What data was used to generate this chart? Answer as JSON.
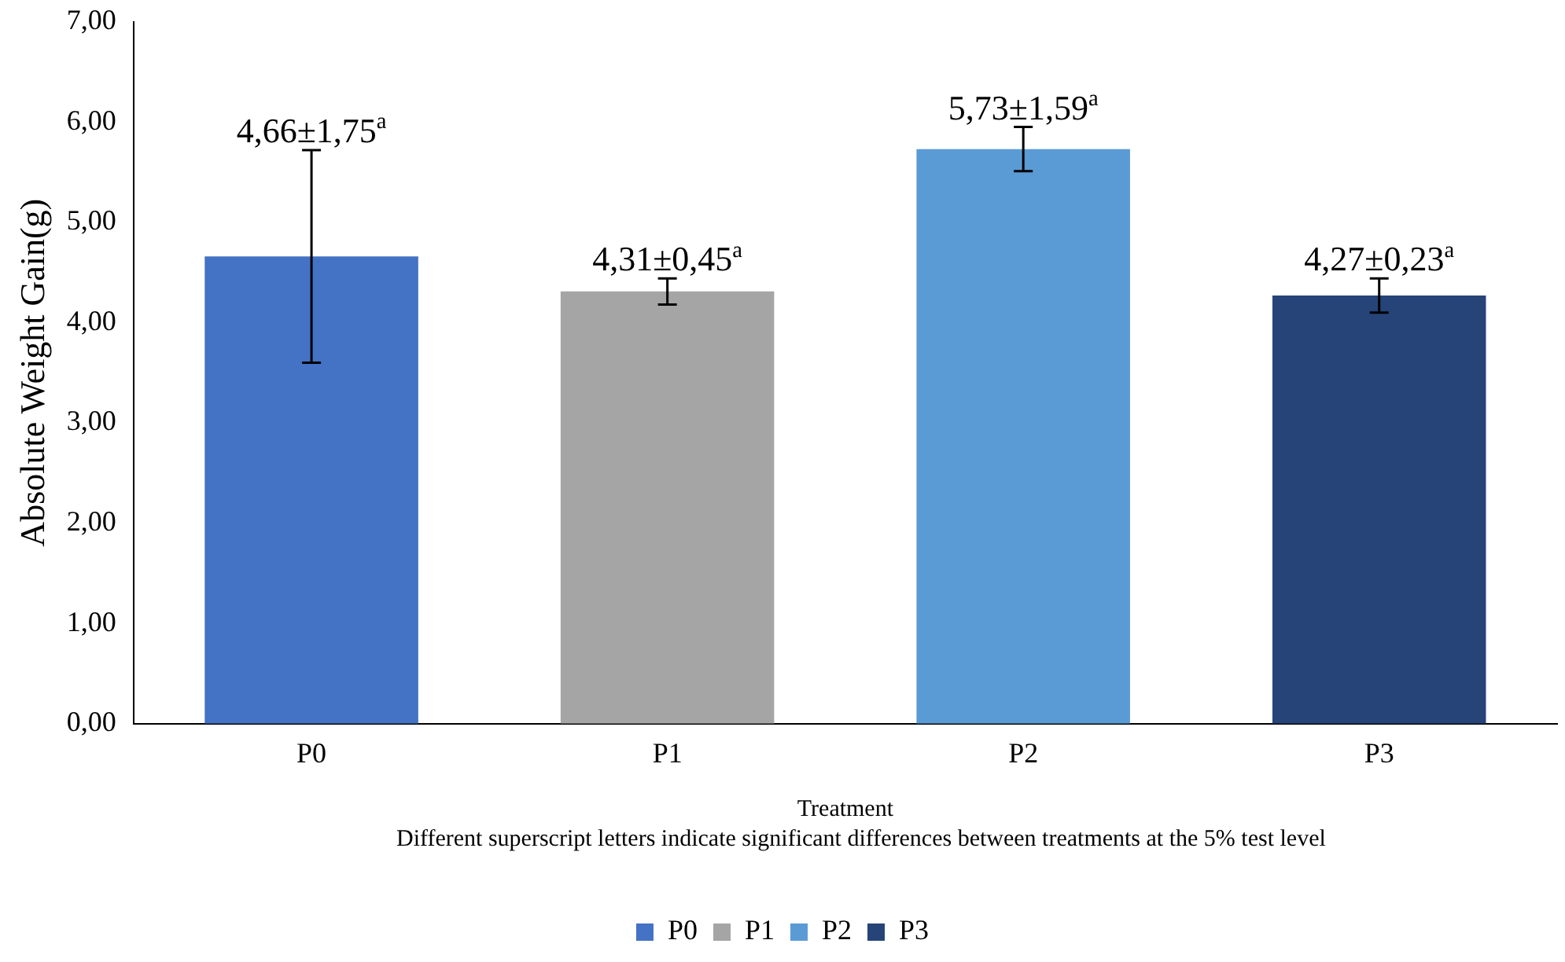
{
  "chart_data": {
    "type": "bar",
    "categories": [
      "P0",
      "P1",
      "P2",
      "P3"
    ],
    "series": [
      {
        "name": "P0",
        "color": "#4472c4",
        "values": [
          4.66,
          null,
          null,
          null
        ],
        "errors": [
          1.06,
          null,
          null,
          null
        ],
        "value_labels": [
          "4,66±1,75$^{a}$",
          null,
          null,
          null
        ]
      },
      {
        "name": "P1",
        "color": "#a5a5a5",
        "values": [
          null,
          4.31,
          null,
          null
        ],
        "errors": [
          null,
          0.13,
          null,
          null
        ],
        "value_labels": [
          null,
          "4,31±0,45$^{a}$",
          null,
          null
        ]
      },
      {
        "name": "P2",
        "color": "#5b9bd5",
        "values": [
          null,
          null,
          5.73,
          null
        ],
        "errors": [
          null,
          null,
          0.22,
          null
        ],
        "value_labels": [
          null,
          null,
          "5,73±1,59$^{a}$",
          null
        ]
      },
      {
        "name": "P3",
        "color": "#264478",
        "values": [
          null,
          null,
          null,
          4.27
        ],
        "errors": [
          null,
          null,
          null,
          0.17
        ],
        "value_labels": [
          null,
          null,
          null,
          "4,27±0,23$^{a}$"
        ]
      }
    ],
    "ylim": [
      0,
      7
    ],
    "yticks": [
      {
        "value": 0,
        "label": "0,00"
      },
      {
        "value": 1,
        "label": "1,00"
      },
      {
        "value": 2,
        "label": "2,00"
      },
      {
        "value": 3,
        "label": "3,00"
      },
      {
        "value": 4,
        "label": "4,00"
      },
      {
        "value": 5,
        "label": "5,00"
      },
      {
        "value": 6,
        "label": "6,00"
      },
      {
        "value": 7,
        "label": "7,00"
      }
    ],
    "xlabel": "Treatment",
    "ylabel": "Absolute Weight Gain(g)",
    "annotations": [
      "Different superscript letters indicate significant differences between treatments at the 5% test level"
    ],
    "grid": false,
    "legend": "bottom"
  }
}
